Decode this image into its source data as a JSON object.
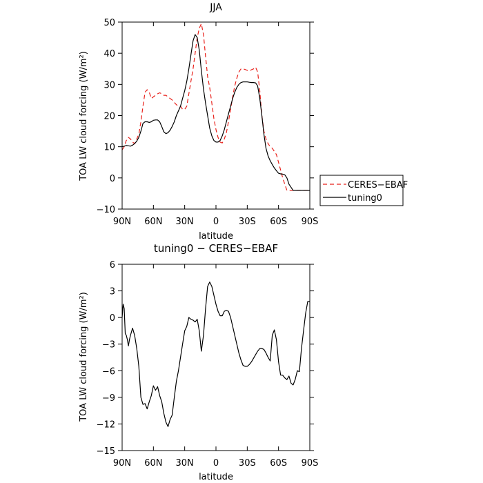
{
  "colors": {
    "ceres": "#e8201a",
    "tuning0": "#000000",
    "frame": "#000000",
    "background": "#ffffff"
  },
  "chart_data": [
    {
      "type": "line",
      "title": "JJA",
      "xlabel": "latitude",
      "ylabel": "TOA LW cloud forcing (W/m²)",
      "xlim": [
        90,
        -90
      ],
      "ylim": [
        -10,
        50
      ],
      "xticks": [
        90,
        60,
        30,
        0,
        -30,
        -60,
        -90
      ],
      "xtick_labels": [
        "90N",
        "60N",
        "30N",
        "0",
        "30S",
        "60S",
        "90S"
      ],
      "yticks": [
        -10,
        0,
        10,
        20,
        30,
        40,
        50
      ],
      "ytick_labels": [
        "−10",
        "0",
        "10",
        "20",
        "30",
        "40",
        "50"
      ],
      "legend_position": "right",
      "series": [
        {
          "name": "CERES−EBAF",
          "color": "#e8201a",
          "style": "dashed",
          "x": [
            90,
            88,
            86,
            84,
            82,
            80,
            78,
            76,
            74,
            72,
            70,
            68,
            66,
            64,
            62,
            60,
            58,
            56,
            54,
            52,
            50,
            48,
            46,
            44,
            42,
            40,
            38,
            36,
            34,
            32,
            30,
            28,
            26,
            24,
            22,
            20,
            18,
            16,
            14,
            12,
            10,
            8,
            6,
            4,
            2,
            0,
            -2,
            -4,
            -6,
            -8,
            -10,
            -12,
            -14,
            -16,
            -18,
            -20,
            -22,
            -24,
            -26,
            -28,
            -30,
            -32,
            -34,
            -36,
            -38,
            -40,
            -42,
            -44,
            -46,
            -48,
            -50,
            -52,
            -54,
            -56,
            -58,
            -60,
            -62,
            -64,
            -66,
            -68,
            -70,
            -72,
            -74,
            -76,
            -78,
            -80,
            -82,
            -84,
            -86,
            -88,
            -90
          ],
          "y": [
            9,
            10,
            12,
            13,
            12.5,
            11.5,
            11,
            12.5,
            14,
            18,
            23,
            27.5,
            28.3,
            27.5,
            25.5,
            26,
            26.5,
            27,
            27.3,
            27,
            26.5,
            26.5,
            26,
            25.5,
            25,
            24.2,
            23.5,
            23,
            23,
            22,
            22,
            23,
            27,
            31,
            35,
            40,
            45,
            48,
            49.5,
            46,
            39,
            32.5,
            29,
            24,
            19,
            15.5,
            13,
            11.5,
            11.2,
            12.5,
            14.5,
            18,
            22,
            26,
            29.5,
            32,
            34,
            35,
            35,
            34.8,
            34.5,
            34.3,
            34.7,
            35,
            35.5,
            34,
            28,
            20,
            15,
            12.5,
            11,
            10,
            9.5,
            8.5,
            7.5,
            5,
            2.5,
            0,
            -2,
            -4,
            -4,
            -4,
            -4,
            -4,
            -4,
            -4,
            -4,
            -4,
            -4,
            -4,
            -4
          ]
        },
        {
          "name": "tuning0",
          "color": "#000000",
          "style": "solid",
          "x": [
            90,
            88,
            86,
            84,
            82,
            80,
            78,
            76,
            74,
            72,
            70,
            68,
            66,
            64,
            62,
            60,
            58,
            56,
            54,
            52,
            50,
            48,
            46,
            44,
            42,
            40,
            38,
            36,
            34,
            32,
            30,
            28,
            26,
            24,
            22,
            20,
            18,
            16,
            14,
            12,
            10,
            8,
            6,
            4,
            2,
            0,
            -2,
            -4,
            -6,
            -8,
            -10,
            -12,
            -14,
            -16,
            -18,
            -20,
            -22,
            -24,
            -26,
            -28,
            -30,
            -32,
            -34,
            -36,
            -38,
            -40,
            -42,
            -44,
            -46,
            -48,
            -50,
            -52,
            -54,
            -56,
            -58,
            -60,
            -62,
            -64,
            -66,
            -68,
            -70,
            -72,
            -74,
            -76,
            -78,
            -80,
            -82,
            -84,
            -86,
            -88,
            -90
          ],
          "y": [
            10,
            10.2,
            10.4,
            10.3,
            10.2,
            10.5,
            11,
            11.8,
            13,
            15,
            17.5,
            18,
            18,
            17.8,
            18,
            18.5,
            18.6,
            18.6,
            18,
            16.5,
            14.8,
            14.2,
            14.5,
            15.3,
            16.5,
            18,
            20,
            21.5,
            23,
            25.5,
            28,
            31,
            35,
            39.5,
            44,
            46,
            45,
            41,
            34.5,
            28.5,
            24,
            20,
            16,
            13.5,
            12,
            11.5,
            11.5,
            12,
            13.5,
            15.5,
            18,
            20.5,
            23,
            25.5,
            27.5,
            29,
            30,
            30.6,
            30.8,
            30.8,
            30.8,
            30.7,
            30.6,
            30.6,
            30.5,
            29.5,
            25.5,
            20,
            14,
            9.5,
            7,
            5.5,
            4.3,
            3.2,
            2.3,
            1.5,
            1.3,
            1.2,
            1,
            0,
            -2,
            -3,
            -4,
            -4,
            -4,
            -4,
            -4,
            -4,
            -4,
            -4,
            -4
          ]
        }
      ]
    },
    {
      "type": "line",
      "title": "tuning0 − CERES−EBAF",
      "xlabel": "latitude",
      "ylabel": "TOA LW cloud forcing (W/m²)",
      "xlim": [
        90,
        -90
      ],
      "ylim": [
        -15,
        6
      ],
      "xticks": [
        90,
        60,
        30,
        0,
        -30,
        -60,
        -90
      ],
      "xtick_labels": [
        "90N",
        "60N",
        "30N",
        "0",
        "30S",
        "60S",
        "90S"
      ],
      "yticks": [
        -15,
        -12,
        -9,
        -6,
        -3,
        0,
        3,
        6
      ],
      "ytick_labels": [
        "−15",
        "−12",
        "−9",
        "−6",
        "−3",
        "0",
        "3",
        "6"
      ],
      "series": [
        {
          "name": "",
          "color": "#000000",
          "style": "solid",
          "x": [
            90,
            89,
            88,
            87,
            86,
            85,
            84,
            83,
            82,
            80,
            78,
            76,
            74,
            72,
            70,
            68,
            66,
            64,
            62,
            60,
            58,
            56,
            54,
            52,
            50,
            48,
            46,
            44,
            42,
            40,
            38,
            36,
            34,
            32,
            30,
            28,
            26,
            24,
            22,
            20,
            18,
            16,
            14,
            12,
            10,
            8,
            6,
            4,
            2,
            0,
            -2,
            -4,
            -6,
            -8,
            -10,
            -12,
            -14,
            -16,
            -18,
            -20,
            -22,
            -24,
            -26,
            -28,
            -30,
            -32,
            -34,
            -36,
            -38,
            -40,
            -42,
            -44,
            -46,
            -48,
            -50,
            -52,
            -54,
            -56,
            -58,
            -60,
            -62,
            -64,
            -66,
            -68,
            -70,
            -72,
            -74,
            -76,
            -78,
            -80,
            -82,
            -84,
            -86,
            -88,
            -90
          ],
          "y": [
            0,
            1.5,
            1,
            -1.8,
            -2,
            -2.5,
            -3.2,
            -2.5,
            -2,
            -1.2,
            -2,
            -3.5,
            -5.5,
            -9,
            -9.8,
            -9.7,
            -10.3,
            -9.5,
            -8.8,
            -7.7,
            -8.2,
            -7.8,
            -8.8,
            -9.5,
            -10.8,
            -11.8,
            -12.3,
            -11.5,
            -11,
            -9,
            -7.2,
            -6,
            -4.5,
            -3,
            -1.5,
            -1,
            0,
            -0.2,
            -0.3,
            -0.5,
            -0.2,
            -1.5,
            -3.8,
            -2,
            1,
            3.5,
            4,
            3.5,
            2.5,
            1.5,
            0.7,
            0.2,
            0.2,
            0.7,
            0.8,
            0.7,
            0,
            -1,
            -2,
            -3,
            -4,
            -4.8,
            -5.4,
            -5.5,
            -5.5,
            -5.3,
            -5,
            -4.6,
            -4.2,
            -3.8,
            -3.5,
            -3.5,
            -3.6,
            -4,
            -4.5,
            -4.9,
            -2,
            -1.4,
            -2.5,
            -5,
            -6.5,
            -6.5,
            -6.8,
            -7,
            -6.6,
            -7.4,
            -7.6,
            -7,
            -6,
            -6.1,
            -3.5,
            -1.5,
            0.5,
            1.8,
            1.8
          ]
        }
      ]
    }
  ]
}
